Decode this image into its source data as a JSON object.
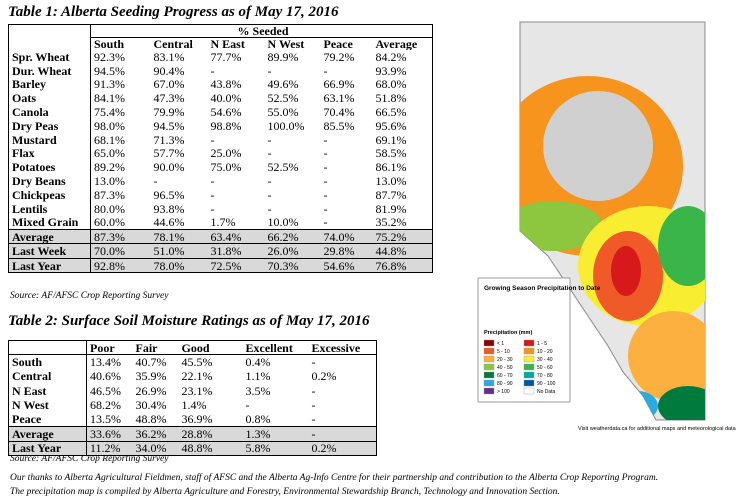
{
  "table1": {
    "title": "Table 1: Alberta Seeding Progress as of May 17, 2016",
    "group_header": "% Seeded",
    "columns": [
      "South",
      "Central",
      "N East",
      "N West",
      "Peace",
      "Average"
    ],
    "rows": [
      [
        "Spr. Wheat",
        "92.3%",
        "83.1%",
        "77.7%",
        "89.9%",
        "79.2%",
        "84.2%"
      ],
      [
        "Dur. Wheat",
        "94.5%",
        "90.4%",
        "-",
        "-",
        "-",
        "93.9%"
      ],
      [
        "Barley",
        "91.3%",
        "67.0%",
        "43.8%",
        "49.6%",
        "66.9%",
        "68.0%"
      ],
      [
        "Oats",
        "84.1%",
        "47.3%",
        "40.0%",
        "52.5%",
        "63.1%",
        "51.8%"
      ],
      [
        "Canola",
        "75.4%",
        "79.9%",
        "54.6%",
        "55.0%",
        "70.4%",
        "66.5%"
      ],
      [
        "Dry Peas",
        "98.0%",
        "94.5%",
        "98.8%",
        "100.0%",
        "85.5%",
        "95.6%"
      ],
      [
        "Mustard",
        "68.1%",
        "71.3%",
        "-",
        "-",
        "-",
        "69.1%"
      ],
      [
        "Flax",
        "65.0%",
        "57.7%",
        "25.0%",
        "-",
        "-",
        "58.5%"
      ],
      [
        "Potatoes",
        "89.2%",
        "90.0%",
        "75.0%",
        "52.5%",
        "-",
        "86.1%"
      ],
      [
        "Dry Beans",
        "13.0%",
        "-",
        "-",
        "-",
        "-",
        "13.0%"
      ],
      [
        "Chickpeas",
        "87.3%",
        "96.5%",
        "-",
        "-",
        "-",
        "87.7%"
      ],
      [
        "Lentils",
        "80.0%",
        "93.8%",
        "-",
        "-",
        "-",
        "81.9%"
      ],
      [
        "Mixed Grain",
        "60.0%",
        "44.6%",
        "1.7%",
        "10.0%",
        "-",
        "35.2%"
      ]
    ],
    "summary_rows": [
      [
        "Average",
        "87.3%",
        "78.1%",
        "63.4%",
        "66.2%",
        "74.0%",
        "75.2%"
      ],
      [
        "Last Week",
        "70.0%",
        "51.0%",
        "31.8%",
        "26.0%",
        "29.8%",
        "44.8%"
      ],
      [
        "Last Year",
        "92.8%",
        "78.0%",
        "72.5%",
        "70.3%",
        "54.6%",
        "76.8%"
      ]
    ],
    "source": "Source: AF/AFSC Crop Reporting Survey"
  },
  "table2": {
    "title": "Table 2: Surface Soil Moisture Ratings as of May 17, 2016",
    "columns": [
      "Poor",
      "Fair",
      "Good",
      "Excellent",
      "Excessive"
    ],
    "rows": [
      [
        "South",
        "13.4%",
        "40.7%",
        "45.5%",
        "0.4%",
        "-"
      ],
      [
        "Central",
        "40.6%",
        "35.9%",
        "22.1%",
        "1.1%",
        "0.2%"
      ],
      [
        "N East",
        "46.5%",
        "26.9%",
        "23.1%",
        "3.5%",
        "-"
      ],
      [
        "N West",
        "68.2%",
        "30.4%",
        "1.4%",
        "-",
        "-"
      ],
      [
        "Peace",
        "13.5%",
        "48.8%",
        "36.9%",
        "0.8%",
        "-"
      ]
    ],
    "summary_rows": [
      [
        "Average",
        "33.6%",
        "36.2%",
        "28.8%",
        "1.3%",
        "-"
      ],
      [
        "Last Year",
        "11.2%",
        "34.0%",
        "48.8%",
        "5.8%",
        "0.2%"
      ]
    ],
    "source": "Source: AF/AFSC Crop Reporting Survey"
  },
  "footnotes": [
    "Our thanks to Alberta Agricultural Fieldmen, staff of AFSC and the Alberta Ag-Info Centre for their partnership and contribution to the Alberta Crop Reporting Program.",
    "The precipitation map is compiled by Alberta Agriculture and Forestry, Environmental Stewardship Branch, Technology and Innovation Section."
  ],
  "map": {
    "title": "Growing Season Precipitation to Date",
    "legend_title": "Precipitation (mm)",
    "legend": [
      {
        "label": "< 1",
        "color": "#8b0000"
      },
      {
        "label": "1 - 5",
        "color": "#d7191c"
      },
      {
        "label": "5 - 10",
        "color": "#f05a28"
      },
      {
        "label": "10 - 20",
        "color": "#f7941d"
      },
      {
        "label": "20 - 30",
        "color": "#fbb040"
      },
      {
        "label": "30 - 40",
        "color": "#f9ed32"
      },
      {
        "label": "40 - 50",
        "color": "#8dc63f"
      },
      {
        "label": "50 - 60",
        "color": "#39b54a"
      },
      {
        "label": "60 - 70",
        "color": "#007a3d"
      },
      {
        "label": "70 - 80",
        "color": "#00a99d"
      },
      {
        "label": "80 - 90",
        "color": "#29abe2"
      },
      {
        "label": "90 - 100",
        "color": "#0054a6"
      },
      {
        "label": "> 100",
        "color": "#662d91"
      },
      {
        "label": "No Data",
        "color": "#ffffff"
      }
    ],
    "footer": "Visit weatherdata.ca for additional maps and meteorological data"
  }
}
